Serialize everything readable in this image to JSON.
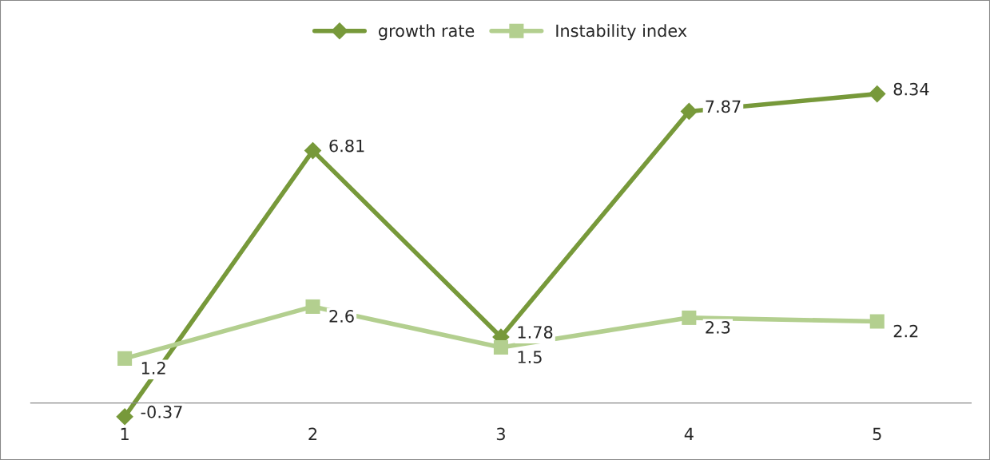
{
  "chart_data": {
    "type": "line",
    "categories": [
      "1",
      "2",
      "3",
      "4",
      "5"
    ],
    "series": [
      {
        "name": "growth rate",
        "color": "#77993a",
        "values": [
          -0.37,
          6.81,
          1.78,
          7.87,
          8.34
        ],
        "marker": "diamond"
      },
      {
        "name": "Instability index",
        "color": "#b3cf8f",
        "values": [
          1.2,
          2.6,
          1.5,
          2.3,
          2.2
        ],
        "marker": "square"
      }
    ],
    "data_labels": true,
    "legend": "top",
    "grid": false,
    "line_style": "solid"
  }
}
